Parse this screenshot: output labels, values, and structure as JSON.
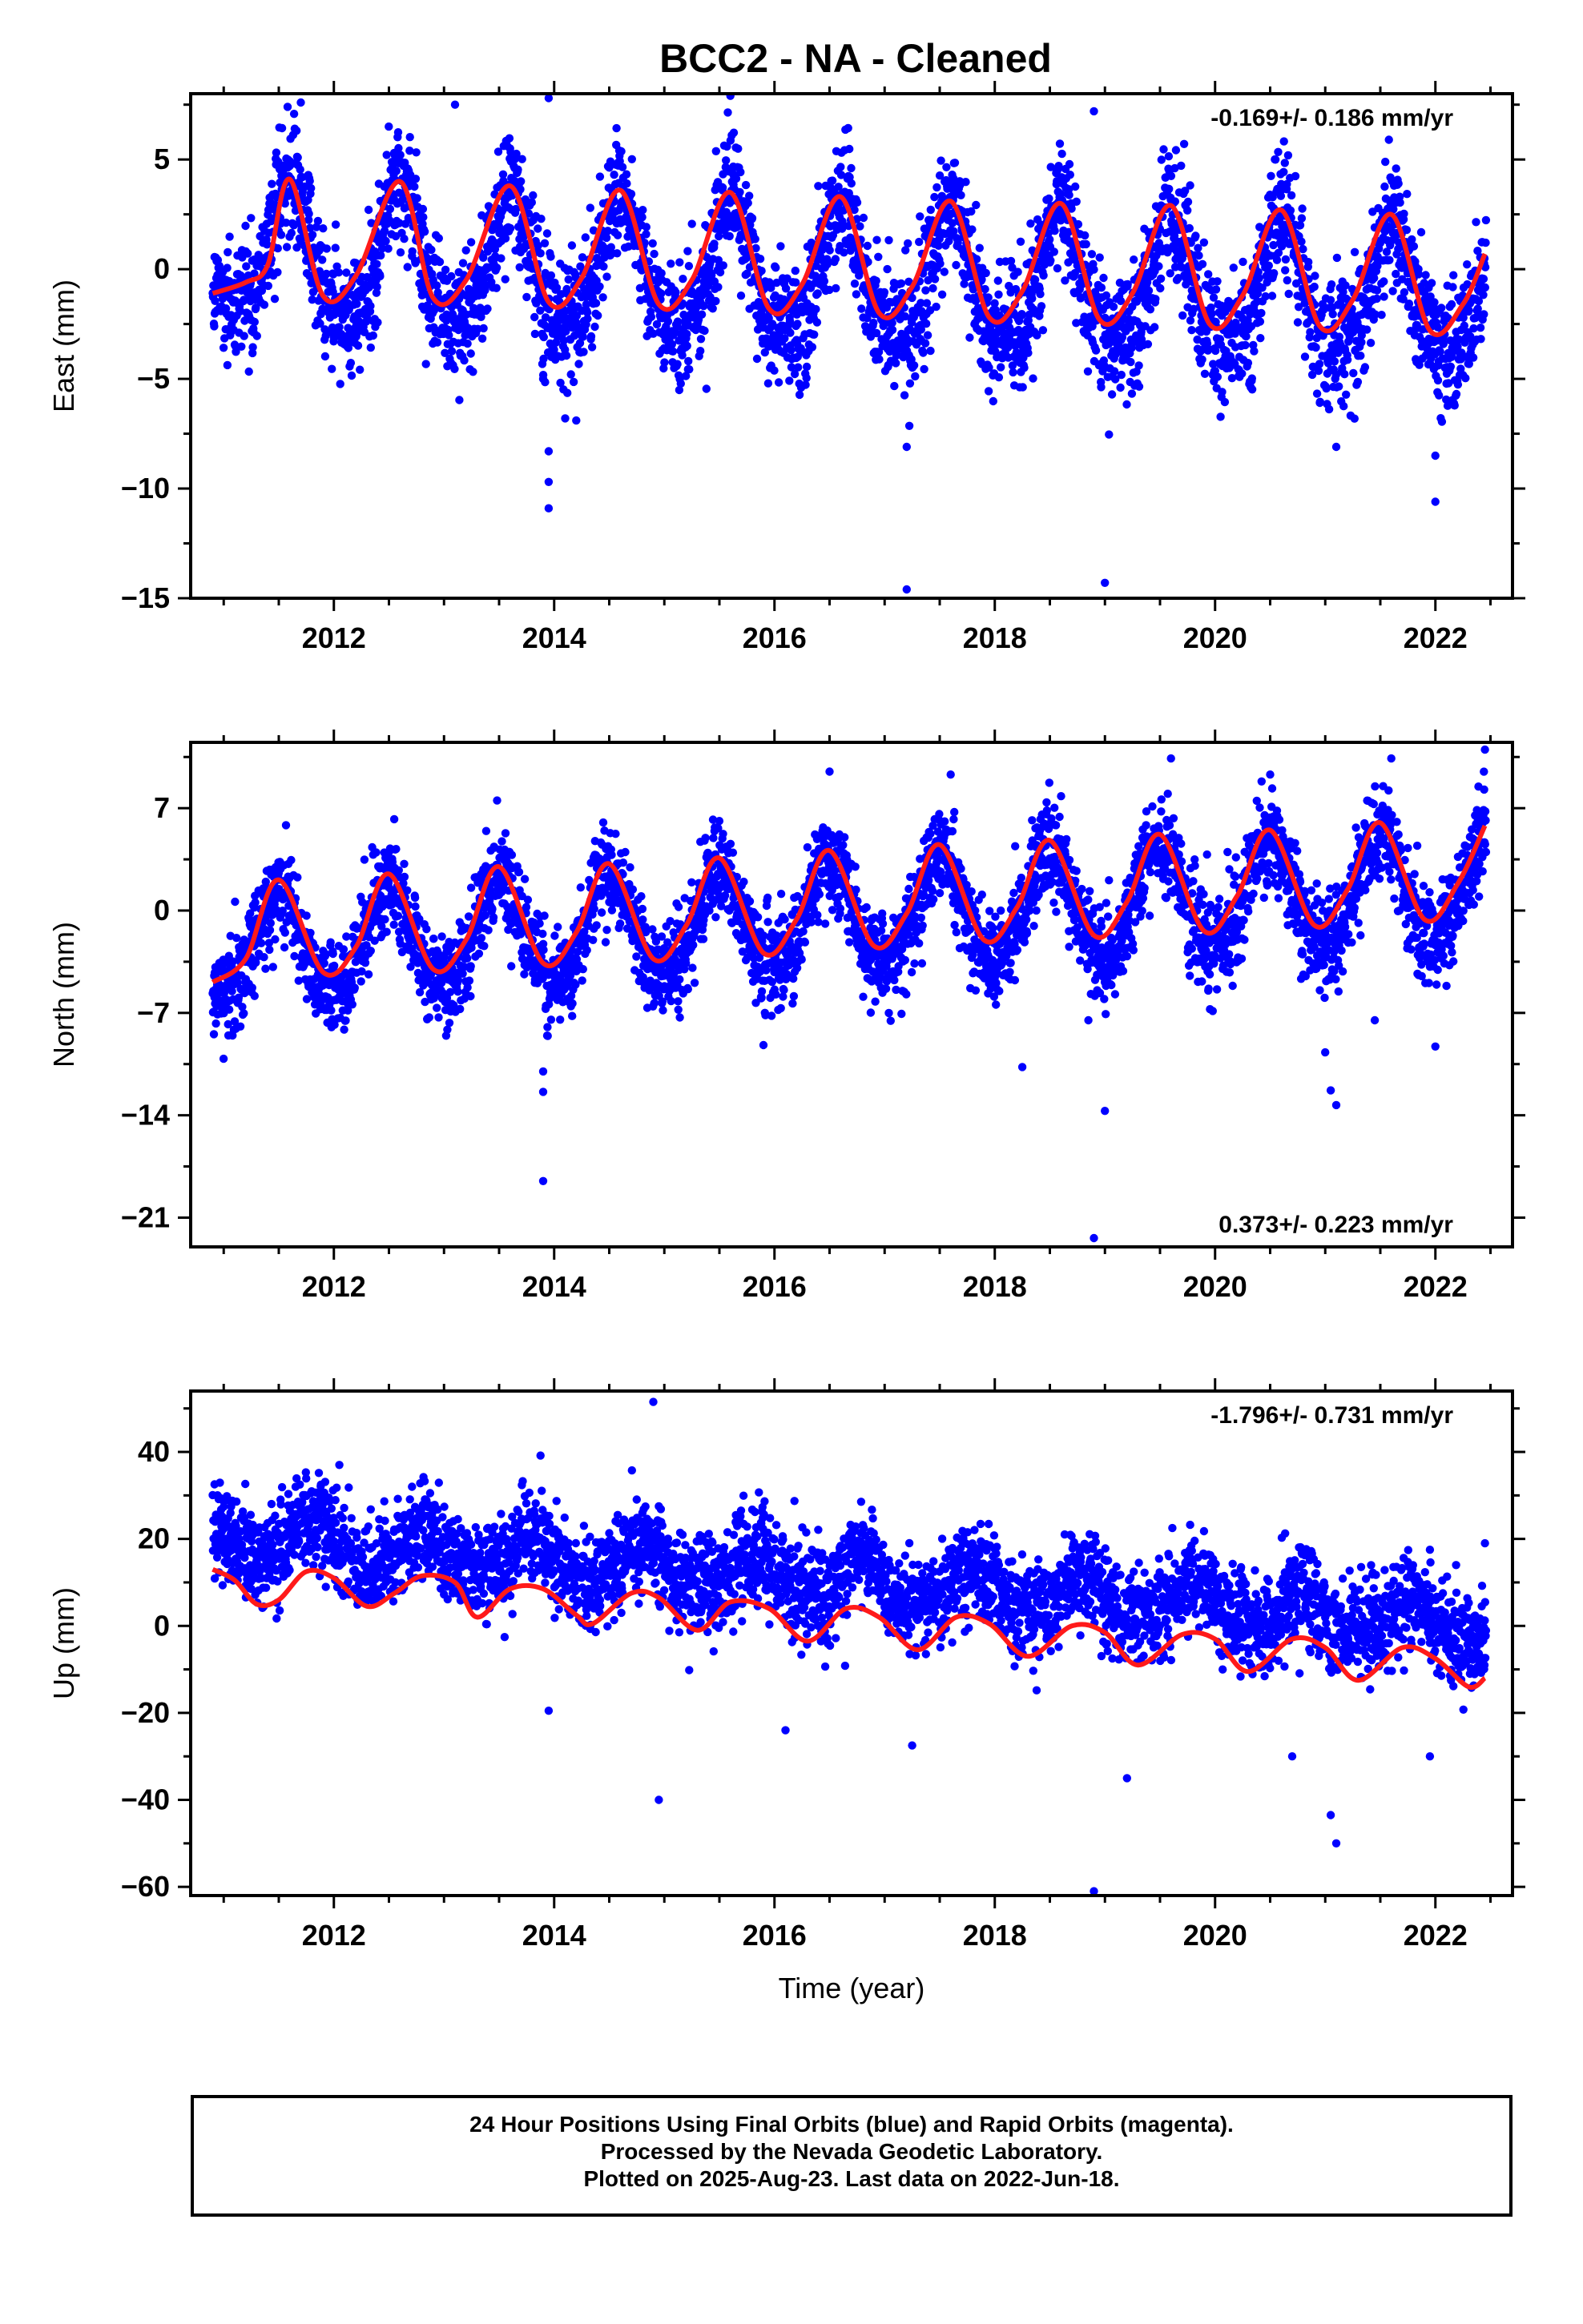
{
  "title": "BCC2  - NA - Cleaned",
  "colors": {
    "points": "#0000ff",
    "fit": "#ff1a1a",
    "frame": "#000000"
  },
  "footer": {
    "line1": "24 Hour Positions Using Final Orbits (blue) and Rapid Orbits (magenta).",
    "line2": "Processed by the Nevada Geodetic Laboratory.",
    "line3": "Plotted on 2025-Aug-23. Last data on 2022-Jun-18."
  },
  "chart_data": [
    {
      "type": "scatter",
      "id": "east",
      "ylabel": "East (mm)",
      "xlabel": "",
      "xlim": [
        2010.7,
        2022.7
      ],
      "ylim": [
        -15,
        8
      ],
      "xticks": [
        2012,
        2014,
        2016,
        2018,
        2020,
        2022
      ],
      "yticks": [
        -15,
        -10,
        -5,
        0,
        5
      ],
      "ytick_labels": [
        "−15",
        "−10",
        "−5",
        "0",
        "5"
      ],
      "rate": "-0.169+/- 0.186 mm/yr",
      "rate_position": "top-right",
      "model": {
        "trend": -0.169,
        "offset": -0.4,
        "annual_amp": 2.9,
        "annual_peak": 0.6,
        "semi_amp": 0.6,
        "noise": 1.4
      },
      "outliers": [
        [
          2011.58,
          7.4
        ],
        [
          2011.7,
          7.6
        ],
        [
          2013.1,
          7.5
        ],
        [
          2013.95,
          7.8
        ],
        [
          2015.6,
          7.9
        ],
        [
          2013.9,
          -5.0
        ],
        [
          2013.95,
          -8.3
        ],
        [
          2013.95,
          -9.7
        ],
        [
          2013.95,
          -10.9
        ],
        [
          2014.2,
          -6.9
        ],
        [
          2014.1,
          -6.8
        ],
        [
          2017.2,
          -8.1
        ],
        [
          2017.2,
          -14.6
        ],
        [
          2019.0,
          -14.3
        ],
        [
          2018.9,
          7.2
        ],
        [
          2022.0,
          -10.6
        ],
        [
          2021.1,
          -8.1
        ],
        [
          2022.0,
          -8.5
        ]
      ],
      "fit_points": [
        [
          2010.9,
          -1.1
        ],
        [
          2011.2,
          -0.6
        ],
        [
          2011.4,
          0.2
        ],
        [
          2011.6,
          4.1
        ],
        [
          2011.9,
          -1.2
        ],
        [
          2012.2,
          -0.3
        ],
        [
          2012.6,
          4.0
        ],
        [
          2012.9,
          -1.3
        ],
        [
          2013.2,
          -0.5
        ],
        [
          2013.6,
          3.8
        ],
        [
          2013.95,
          -1.5
        ],
        [
          2014.25,
          -0.4
        ],
        [
          2014.6,
          3.6
        ],
        [
          2014.95,
          -1.6
        ],
        [
          2015.25,
          -0.5
        ],
        [
          2015.6,
          3.5
        ],
        [
          2015.95,
          -1.8
        ],
        [
          2016.25,
          -0.7
        ],
        [
          2016.6,
          3.3
        ],
        [
          2016.95,
          -2.0
        ],
        [
          2017.25,
          -0.8
        ],
        [
          2017.6,
          3.1
        ],
        [
          2017.95,
          -2.2
        ],
        [
          2018.25,
          -1.0
        ],
        [
          2018.6,
          3.0
        ],
        [
          2018.95,
          -2.3
        ],
        [
          2019.25,
          -1.1
        ],
        [
          2019.6,
          2.9
        ],
        [
          2019.95,
          -2.5
        ],
        [
          2020.25,
          -1.2
        ],
        [
          2020.6,
          2.7
        ],
        [
          2020.95,
          -2.6
        ],
        [
          2021.25,
          -1.4
        ],
        [
          2021.6,
          2.5
        ],
        [
          2021.95,
          -2.8
        ],
        [
          2022.25,
          -1.6
        ],
        [
          2022.45,
          0.7
        ]
      ]
    },
    {
      "type": "scatter",
      "id": "north",
      "ylabel": "North (mm)",
      "xlabel": "",
      "xlim": [
        2010.7,
        2022.7
      ],
      "ylim": [
        -23,
        11.5
      ],
      "xticks": [
        2012,
        2014,
        2016,
        2018,
        2020,
        2022
      ],
      "yticks": [
        -21,
        -14,
        -7,
        0,
        7
      ],
      "ytick_labels": [
        "−21",
        "−14",
        "−7",
        "0",
        "7"
      ],
      "rate": "0.373+/- 0.223 mm/yr",
      "rate_position": "bottom-right",
      "model": {
        "trend": 0.373,
        "offset": -0.5,
        "annual_amp": 3.6,
        "annual_peak": 0.5,
        "semi_amp": 0.4,
        "noise": 1.6
      },
      "outliers": [
        [
          2013.9,
          -11.0
        ],
        [
          2013.9,
          -12.4
        ],
        [
          2013.9,
          -18.5
        ],
        [
          2015.9,
          -9.2
        ],
        [
          2018.25,
          -10.7
        ],
        [
          2018.9,
          -22.4
        ],
        [
          2019.0,
          -13.7
        ],
        [
          2021.0,
          -9.7
        ],
        [
          2021.05,
          -12.3
        ],
        [
          2021.1,
          -13.3
        ],
        [
          2022.0,
          -9.3
        ],
        [
          2016.5,
          9.5
        ],
        [
          2017.6,
          9.3
        ],
        [
          2019.6,
          10.4
        ],
        [
          2020.5,
          9.3
        ],
        [
          2021.6,
          10.4
        ],
        [
          2022.45,
          11.0
        ],
        [
          2018.85,
          -7.5
        ],
        [
          2021.45,
          -7.5
        ]
      ],
      "fit_points": [
        [
          2010.9,
          -4.9
        ],
        [
          2011.2,
          -3.3
        ],
        [
          2011.5,
          2.1
        ],
        [
          2011.9,
          -4.2
        ],
        [
          2012.2,
          -2.5
        ],
        [
          2012.5,
          2.5
        ],
        [
          2012.9,
          -4.0
        ],
        [
          2013.2,
          -2.0
        ],
        [
          2013.5,
          3.0
        ],
        [
          2013.9,
          -3.6
        ],
        [
          2014.2,
          -1.5
        ],
        [
          2014.5,
          3.2
        ],
        [
          2014.9,
          -3.3
        ],
        [
          2015.2,
          -1.0
        ],
        [
          2015.5,
          3.6
        ],
        [
          2015.9,
          -2.9
        ],
        [
          2016.2,
          -0.6
        ],
        [
          2016.5,
          4.1
        ],
        [
          2016.9,
          -2.4
        ],
        [
          2017.2,
          -0.2
        ],
        [
          2017.5,
          4.5
        ],
        [
          2017.9,
          -2.0
        ],
        [
          2018.2,
          0.2
        ],
        [
          2018.5,
          4.8
        ],
        [
          2018.9,
          -1.7
        ],
        [
          2019.2,
          0.6
        ],
        [
          2019.5,
          5.2
        ],
        [
          2019.9,
          -1.4
        ],
        [
          2020.2,
          1.0
        ],
        [
          2020.5,
          5.5
        ],
        [
          2020.9,
          -1.0
        ],
        [
          2021.2,
          1.4
        ],
        [
          2021.5,
          6.0
        ],
        [
          2021.9,
          -0.6
        ],
        [
          2022.2,
          1.8
        ],
        [
          2022.45,
          5.8
        ]
      ]
    },
    {
      "type": "scatter",
      "id": "up",
      "ylabel": "Up (mm)",
      "xlabel": "Time (year)",
      "xlim": [
        2010.7,
        2022.7
      ],
      "ylim": [
        -62,
        54
      ],
      "xticks": [
        2012,
        2014,
        2016,
        2018,
        2020,
        2022
      ],
      "yticks": [
        -60,
        -40,
        -20,
        0,
        20,
        40
      ],
      "ytick_labels": [
        "−60",
        "−40",
        "−20",
        "0",
        "20",
        "40"
      ],
      "rate": "-1.796+/- 0.731 mm/yr",
      "rate_position": "top-right",
      "model": {
        "trend": -1.796,
        "offset": 10.5,
        "annual_amp": 4.5,
        "annual_peak": 0.8,
        "semi_amp": 1.0,
        "noise": 5.5
      },
      "outliers": [
        [
          2012.05,
          37.0
        ],
        [
          2014.9,
          51.5
        ],
        [
          2014.95,
          27.5
        ],
        [
          2014.95,
          -40.0
        ],
        [
          2013.95,
          -19.5
        ],
        [
          2016.1,
          -24.0
        ],
        [
          2017.25,
          -27.5
        ],
        [
          2018.9,
          -61.0
        ],
        [
          2019.2,
          -35.0
        ],
        [
          2020.7,
          -30.0
        ],
        [
          2021.05,
          -43.5
        ],
        [
          2021.1,
          -50.0
        ],
        [
          2021.95,
          -30.0
        ],
        [
          2022.45,
          19.0
        ],
        [
          2021.95,
          17.5
        ]
      ],
      "fit_points": [
        [
          2010.9,
          13.0
        ],
        [
          2011.1,
          10.5
        ],
        [
          2011.3,
          5.0
        ],
        [
          2011.5,
          6.0
        ],
        [
          2011.75,
          12.5
        ],
        [
          2012.0,
          11.0
        ],
        [
          2012.3,
          4.5
        ],
        [
          2012.55,
          7.5
        ],
        [
          2012.8,
          11.5
        ],
        [
          2013.1,
          10.0
        ],
        [
          2013.3,
          2.0
        ],
        [
          2013.6,
          8.5
        ],
        [
          2013.9,
          8.5
        ],
        [
          2014.2,
          2.5
        ],
        [
          2014.35,
          0.5
        ],
        [
          2014.7,
          7.5
        ],
        [
          2014.95,
          6.5
        ],
        [
          2015.3,
          -1.0
        ],
        [
          2015.6,
          5.5
        ],
        [
          2015.95,
          4.0
        ],
        [
          2016.3,
          -3.5
        ],
        [
          2016.65,
          4.0
        ],
        [
          2016.95,
          2.0
        ],
        [
          2017.3,
          -5.5
        ],
        [
          2017.65,
          2.0
        ],
        [
          2017.95,
          0.5
        ],
        [
          2018.3,
          -7.0
        ],
        [
          2018.7,
          0.0
        ],
        [
          2019.0,
          -1.5
        ],
        [
          2019.3,
          -9.0
        ],
        [
          2019.7,
          -2.0
        ],
        [
          2020.0,
          -3.0
        ],
        [
          2020.3,
          -10.5
        ],
        [
          2020.7,
          -3.0
        ],
        [
          2021.0,
          -5.0
        ],
        [
          2021.3,
          -12.5
        ],
        [
          2021.7,
          -5.0
        ],
        [
          2022.0,
          -7.5
        ],
        [
          2022.3,
          -14.0
        ],
        [
          2022.45,
          -12.0
        ]
      ]
    }
  ]
}
